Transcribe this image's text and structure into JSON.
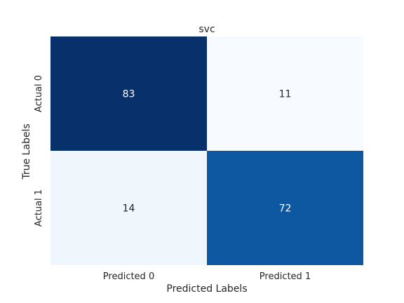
{
  "chart_data": {
    "type": "heatmap",
    "title": "svc",
    "xlabel": "Predicted Labels",
    "ylabel": "True Labels",
    "x_categories": [
      "Predicted 0",
      "Predicted 1"
    ],
    "y_categories": [
      "Actual 0",
      "Actual 1"
    ],
    "values": [
      [
        83,
        11
      ],
      [
        14,
        72
      ]
    ],
    "colormap": "Blues",
    "colorbar": false,
    "annotations": true
  }
}
